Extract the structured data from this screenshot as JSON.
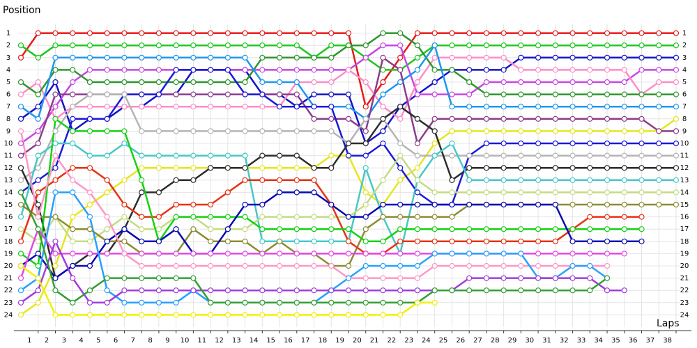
{
  "chart_data": {
    "type": "lap-chart",
    "y_label": "Position",
    "x_label": "Laps",
    "x": [
      0,
      1,
      2,
      3,
      4,
      5,
      6,
      7,
      8,
      9,
      10,
      11,
      12,
      13,
      14,
      15,
      16,
      17,
      18,
      19,
      20,
      21,
      22,
      23,
      24,
      25,
      26,
      27,
      28,
      29,
      30,
      31,
      32,
      33,
      34,
      35,
      36,
      37,
      38
    ],
    "xlim": [
      0,
      38
    ],
    "ylim": [
      0,
      25
    ],
    "y_inverted": true,
    "grid": true,
    "xticks": [
      1,
      2,
      3,
      4,
      5,
      6,
      7,
      8,
      9,
      10,
      11,
      12,
      13,
      14,
      15,
      16,
      17,
      18,
      19,
      20,
      21,
      22,
      23,
      24,
      25,
      26,
      27,
      28,
      29,
      30,
      31,
      32,
      33,
      34,
      35,
      36,
      37,
      38
    ],
    "yticks": [
      1,
      2,
      3,
      4,
      5,
      6,
      7,
      8,
      9,
      10,
      11,
      12,
      13,
      14,
      15,
      16,
      17,
      18,
      19,
      20,
      21,
      22,
      23,
      24
    ],
    "series": [
      {
        "color": "#e61a1a",
        "values": [
          3,
          1,
          1,
          1,
          1,
          1,
          1,
          1,
          1,
          1,
          1,
          1,
          1,
          1,
          1,
          1,
          1,
          1,
          1,
          1,
          7,
          5,
          3,
          1,
          1,
          1,
          1,
          1,
          1,
          1,
          1,
          1,
          1,
          1,
          1,
          1,
          1,
          1,
          1
        ]
      },
      {
        "color": "#1ec81e",
        "values": [
          2,
          3,
          2,
          2,
          2,
          2,
          2,
          2,
          2,
          2,
          2,
          2,
          2,
          2,
          2,
          2,
          2,
          3,
          2,
          2,
          3,
          4,
          4,
          3,
          2,
          2,
          2,
          2,
          2,
          2,
          2,
          2,
          2,
          2,
          2,
          2,
          2,
          2,
          2
        ]
      },
      {
        "color": "#1414c8",
        "values": [
          8,
          7,
          5,
          9,
          8,
          8,
          7,
          7,
          6,
          6,
          4,
          4,
          4,
          4,
          6,
          6,
          7,
          6,
          6,
          6,
          10,
          9,
          7,
          6,
          5,
          4,
          4,
          4,
          4,
          3,
          3,
          3,
          3,
          3,
          3,
          3,
          3,
          3,
          3
        ]
      },
      {
        "color": "#c846e6",
        "values": [
          10,
          9,
          7,
          5,
          4,
          4,
          4,
          4,
          4,
          4,
          4,
          4,
          4,
          4,
          4,
          4,
          4,
          4,
          4,
          4,
          3,
          2,
          2,
          6,
          6,
          6,
          6,
          5,
          5,
          5,
          5,
          5,
          5,
          5,
          5,
          5,
          4,
          4,
          4
        ]
      },
      {
        "color": "#ff8cc8",
        "values": [
          6,
          5,
          8,
          7,
          7,
          7,
          7,
          7,
          7,
          7,
          7,
          7,
          7,
          7,
          7,
          7,
          5,
          5,
          5,
          4,
          5,
          7,
          8,
          5,
          3,
          3,
          3,
          3,
          3,
          4,
          4,
          4,
          4,
          4,
          4,
          4,
          6,
          5,
          5
        ]
      },
      {
        "color": "#2d962d",
        "values": [
          5,
          6,
          4,
          4,
          5,
          5,
          5,
          5,
          5,
          5,
          5,
          5,
          5,
          5,
          3,
          3,
          3,
          3,
          3,
          2,
          2,
          1,
          1,
          2,
          4,
          4,
          5,
          6,
          6,
          6,
          6,
          6,
          6,
          6,
          6,
          6,
          6,
          6,
          6
        ]
      },
      {
        "color": "#1e96f0",
        "values": [
          7,
          8,
          3,
          3,
          3,
          3,
          3,
          3,
          3,
          3,
          3,
          3,
          3,
          3,
          5,
          5,
          5,
          7,
          7,
          7,
          8,
          6,
          5,
          4,
          2,
          7,
          7,
          7,
          7,
          7,
          7,
          7,
          7,
          7,
          7,
          7,
          7,
          7,
          7
        ]
      },
      {
        "color": "#e6e61e",
        "values": [
          24,
          23,
          20,
          16,
          15,
          14,
          13,
          12,
          12,
          12,
          12,
          12,
          12,
          12,
          12,
          12,
          12,
          12,
          11,
          11,
          14,
          15,
          13,
          12,
          10,
          9,
          9,
          9,
          9,
          9,
          9,
          9,
          9,
          9,
          9,
          9,
          9,
          9,
          8
        ]
      },
      {
        "color": "#8c3c8c",
        "values": [
          11,
          10,
          6,
          6,
          6,
          6,
          6,
          6,
          6,
          6,
          6,
          6,
          6,
          6,
          6,
          6,
          6,
          8,
          8,
          8,
          9,
          3,
          4,
          10,
          8,
          8,
          8,
          8,
          8,
          8,
          8,
          8,
          8,
          8,
          8,
          8,
          8,
          9,
          9
        ]
      },
      {
        "color": "#1a1ad8",
        "values": [
          14,
          13,
          12,
          8,
          8,
          8,
          6,
          6,
          6,
          4,
          4,
          4,
          4,
          6,
          6,
          7,
          7,
          7,
          7,
          11,
          11,
          10,
          12,
          14,
          15,
          15,
          11,
          10,
          10,
          10,
          10,
          10,
          10,
          10,
          10,
          10,
          10,
          10,
          10
        ]
      },
      {
        "color": "#b4b4b4",
        "values": [
          13,
          12,
          9,
          7,
          6,
          6,
          6,
          9,
          9,
          9,
          9,
          9,
          9,
          9,
          9,
          9,
          9,
          9,
          9,
          10,
          8,
          8,
          10,
          11,
          11,
          11,
          11,
          11,
          11,
          11,
          11,
          11,
          11,
          11,
          11,
          11,
          11,
          11,
          11
        ]
      },
      {
        "color": "#2d2d2d",
        "values": [
          12,
          15,
          21,
          20,
          19,
          19,
          17,
          14,
          14,
          13,
          13,
          12,
          12,
          12,
          11,
          11,
          11,
          12,
          12,
          10,
          10,
          8,
          7,
          8,
          9,
          13,
          12,
          12,
          12,
          12,
          12,
          12,
          12,
          12,
          12,
          12,
          12,
          12,
          12
        ]
      },
      {
        "color": "#46c8c8",
        "values": [
          16,
          11,
          10,
          10,
          11,
          11,
          10,
          11,
          11,
          11,
          11,
          11,
          11,
          11,
          18,
          18,
          18,
          18,
          18,
          18,
          12,
          16,
          19,
          13,
          11,
          10,
          13,
          13,
          13,
          13,
          13,
          13,
          13,
          13,
          13,
          13,
          13,
          13,
          13
        ]
      },
      {
        "color": "#c3dc82",
        "values": [
          17,
          18,
          16,
          18,
          18,
          17,
          16,
          17,
          17,
          16,
          16,
          17,
          17,
          17,
          16,
          16,
          16,
          16,
          16,
          16,
          15,
          13,
          11,
          13,
          14,
          14,
          14,
          14,
          14,
          14,
          14,
          14,
          14,
          14,
          14,
          14,
          14,
          14,
          14
        ]
      },
      {
        "color": "#8c8c32",
        "values": [
          15,
          16,
          16,
          17,
          17,
          18,
          18,
          19,
          19,
          19,
          17,
          18,
          18,
          18,
          19,
          18,
          19,
          19,
          20,
          20,
          17,
          16,
          16,
          16,
          16,
          16,
          15,
          15,
          15,
          15,
          15,
          15,
          15,
          15,
          15,
          15,
          15,
          15,
          15
        ]
      },
      {
        "color": "#e63214",
        "values": [
          18,
          14,
          13,
          12,
          12,
          13,
          15,
          16,
          16,
          15,
          15,
          15,
          14,
          13,
          13,
          13,
          13,
          13,
          15,
          18,
          19,
          19,
          18,
          18,
          18,
          18,
          18,
          18,
          18,
          18,
          18,
          18,
          17,
          16,
          16,
          16,
          16,
          null,
          null
        ]
      },
      {
        "color": "#14d214",
        "values": [
          19,
          20,
          8,
          9,
          9,
          9,
          9,
          13,
          18,
          16,
          16,
          16,
          16,
          16,
          17,
          17,
          17,
          17,
          17,
          17,
          18,
          18,
          17,
          17,
          17,
          17,
          17,
          17,
          17,
          17,
          17,
          17,
          17,
          17,
          17,
          17,
          17,
          null,
          null
        ]
      },
      {
        "color": "#0a0ab4",
        "values": [
          20,
          19,
          21,
          20,
          20,
          18,
          17,
          18,
          18,
          17,
          19,
          19,
          17,
          15,
          15,
          14,
          14,
          14,
          15,
          16,
          16,
          15,
          15,
          15,
          15,
          15,
          15,
          15,
          15,
          15,
          15,
          15,
          18,
          18,
          18,
          18,
          18,
          null,
          null
        ]
      },
      {
        "color": "#e646e6",
        "values": [
          21,
          17,
          19,
          19,
          19,
          19,
          19,
          19,
          19,
          19,
          19,
          19,
          19,
          19,
          19,
          19,
          19,
          19,
          19,
          19,
          19,
          19,
          19,
          19,
          19,
          19,
          19,
          19,
          19,
          19,
          19,
          19,
          19,
          19,
          19,
          19,
          null,
          null,
          null
        ]
      },
      {
        "color": "#ff96c8",
        "values": [
          9,
          16,
          11,
          13,
          14,
          16,
          19,
          20,
          20,
          20,
          20,
          20,
          20,
          20,
          20,
          20,
          20,
          20,
          20,
          21,
          21,
          21,
          21,
          21,
          20,
          20,
          20,
          20,
          20,
          20,
          20,
          20,
          20,
          20,
          20,
          null,
          null,
          null,
          null
        ]
      },
      {
        "color": "#28a0ff",
        "values": [
          22,
          21,
          14,
          14,
          16,
          22,
          23,
          23,
          23,
          23,
          22,
          23,
          23,
          23,
          23,
          23,
          23,
          23,
          22,
          21,
          20,
          20,
          20,
          20,
          19,
          19,
          19,
          19,
          19,
          19,
          21,
          21,
          20,
          20,
          21,
          null,
          null,
          null,
          null
        ]
      },
      {
        "color": "#a03cdc",
        "values": [
          23,
          22,
          18,
          21,
          23,
          23,
          22,
          22,
          22,
          22,
          22,
          22,
          22,
          22,
          22,
          22,
          22,
          22,
          22,
          22,
          22,
          22,
          22,
          22,
          22,
          22,
          21,
          21,
          21,
          21,
          21,
          21,
          21,
          21,
          22,
          22,
          null,
          null,
          null
        ]
      },
      {
        "color": "#32a032",
        "values": [
          14,
          17,
          22,
          23,
          22,
          21,
          21,
          21,
          21,
          21,
          21,
          23,
          23,
          23,
          23,
          23,
          23,
          23,
          23,
          23,
          23,
          23,
          23,
          23,
          22,
          22,
          22,
          22,
          22,
          22,
          22,
          22,
          22,
          22,
          21,
          null,
          null,
          null,
          null
        ]
      },
      {
        "color": "#f0f000",
        "values": [
          20,
          21,
          24,
          24,
          24,
          24,
          24,
          24,
          24,
          24,
          24,
          24,
          24,
          24,
          24,
          24,
          24,
          24,
          24,
          24,
          24,
          24,
          24,
          23,
          23,
          null,
          null,
          null,
          null,
          null,
          null,
          null,
          null,
          null,
          null,
          null,
          null,
          null,
          null
        ]
      }
    ]
  }
}
